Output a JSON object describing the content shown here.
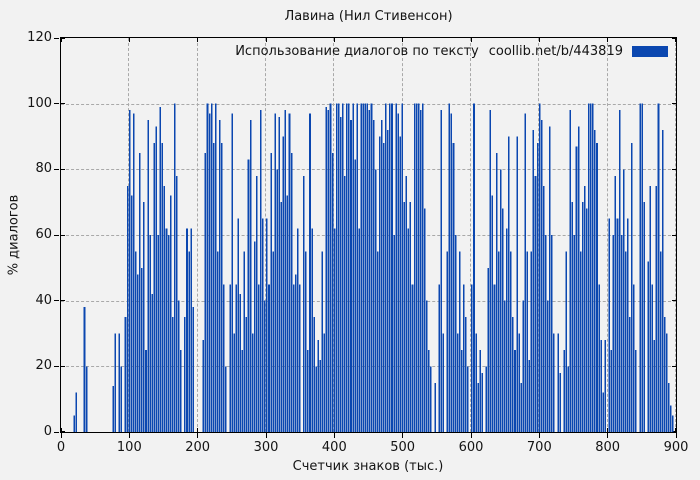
{
  "colors": {
    "background": "#f2f2f2",
    "bar": "#0b47b0",
    "grid": "#a9a9a9",
    "axis": "#000000",
    "text": "#141414"
  },
  "chart_data": {
    "type": "bar",
    "title": "Лавина (Нил Стивенсон)",
    "xlabel": "Счетчик знаков (тыс.)",
    "ylabel": "% диалогов",
    "legend": {
      "label": "Использование диалогов по тексту",
      "source": "coollib.net/b/443819"
    },
    "legend_position": "top-right-inside",
    "grid": true,
    "xlim": [
      0,
      900
    ],
    "ylim": [
      0,
      120
    ],
    "xticks": [
      0,
      100,
      200,
      300,
      400,
      500,
      600,
      700,
      800,
      900
    ],
    "yticks": [
      0,
      20,
      40,
      60,
      80,
      100,
      120
    ],
    "x_start": 0,
    "x_step": 3,
    "values": [
      0,
      0,
      0,
      0,
      0,
      0,
      5,
      12,
      0,
      0,
      0,
      38,
      20,
      0,
      0,
      0,
      0,
      0,
      0,
      0,
      0,
      0,
      0,
      0,
      0,
      14,
      30,
      0,
      30,
      20,
      0,
      35,
      75,
      98,
      72,
      97,
      55,
      48,
      85,
      50,
      70,
      25,
      95,
      60,
      42,
      88,
      93,
      60,
      99,
      88,
      75,
      62,
      60,
      72,
      35,
      100,
      78,
      40,
      25,
      0,
      35,
      62,
      55,
      62,
      38,
      0,
      0,
      0,
      0,
      28,
      85,
      100,
      97,
      100,
      88,
      100,
      55,
      95,
      88,
      45,
      20,
      0,
      45,
      97,
      30,
      45,
      65,
      42,
      25,
      55,
      35,
      83,
      95,
      30,
      58,
      78,
      45,
      98,
      65,
      40,
      65,
      45,
      85,
      55,
      97,
      80,
      96,
      70,
      90,
      98,
      72,
      97,
      85,
      45,
      48,
      62,
      45,
      0,
      78,
      55,
      25,
      97,
      62,
      35,
      20,
      28,
      22,
      55,
      30,
      99,
      98,
      100,
      85,
      62,
      100,
      100,
      96,
      100,
      78,
      100,
      100,
      95,
      100,
      83,
      100,
      62,
      100,
      100,
      100,
      100,
      98,
      100,
      95,
      80,
      55,
      90,
      95,
      88,
      100,
      92,
      100,
      100,
      60,
      100,
      97,
      90,
      100,
      70,
      78,
      62,
      70,
      45,
      100,
      100,
      100,
      98,
      100,
      68,
      40,
      25,
      20,
      0,
      15,
      0,
      45,
      98,
      30,
      0,
      55,
      100,
      97,
      88,
      60,
      30,
      55,
      25,
      45,
      35,
      20,
      0,
      45,
      100,
      30,
      15,
      25,
      18,
      0,
      20,
      50,
      98,
      72,
      45,
      85,
      55,
      80,
      68,
      40,
      62,
      90,
      55,
      35,
      25,
      90,
      30,
      15,
      40,
      97,
      55,
      22,
      55,
      92,
      78,
      88,
      100,
      95,
      75,
      60,
      40,
      93,
      60,
      30,
      0,
      30,
      18,
      0,
      25,
      55,
      20,
      98,
      70,
      60,
      87,
      93,
      55,
      70,
      75,
      68,
      100,
      100,
      100,
      92,
      88,
      45,
      28,
      12,
      28,
      0,
      65,
      25,
      60,
      78,
      65,
      98,
      60,
      80,
      55,
      65,
      35,
      88,
      45,
      25,
      0,
      100,
      100,
      70,
      0,
      52,
      75,
      45,
      28,
      75,
      100,
      55,
      92,
      35,
      30,
      15,
      8,
      5,
      0
    ]
  }
}
